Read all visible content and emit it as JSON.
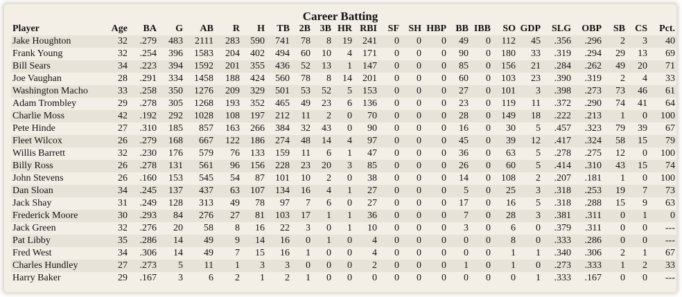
{
  "title": "Career Batting",
  "columns": [
    "Player",
    "Age",
    "BA",
    "G",
    "AB",
    "R",
    "H",
    "TB",
    "2B",
    "3B",
    "HR",
    "RBI",
    "SF",
    "SH",
    "HBP",
    "BB",
    "IBB",
    "SO",
    "GDP",
    "SLG",
    "OBP",
    "SB",
    "CS",
    "Pct."
  ],
  "rows": [
    [
      "Jake Houghton",
      "32",
      ".279",
      "483",
      "2111",
      "283",
      "590",
      "741",
      "78",
      "8",
      "19",
      "241",
      "0",
      "0",
      "0",
      "49",
      "0",
      "112",
      "45",
      ".356",
      ".296",
      "2",
      "3",
      "40"
    ],
    [
      "Frank Young",
      "32",
      ".254",
      "396",
      "1583",
      "204",
      "402",
      "494",
      "60",
      "10",
      "4",
      "171",
      "0",
      "0",
      "0",
      "90",
      "0",
      "180",
      "33",
      ".319",
      ".294",
      "29",
      "13",
      "69"
    ],
    [
      "Bill Sears",
      "34",
      ".223",
      "394",
      "1592",
      "201",
      "355",
      "436",
      "52",
      "13",
      "1",
      "147",
      "0",
      "0",
      "0",
      "85",
      "0",
      "156",
      "21",
      ".284",
      ".262",
      "49",
      "20",
      "71"
    ],
    [
      "Joe Vaughan",
      "28",
      ".291",
      "334",
      "1458",
      "188",
      "424",
      "560",
      "78",
      "8",
      "14",
      "201",
      "0",
      "0",
      "0",
      "60",
      "0",
      "103",
      "23",
      ".390",
      ".319",
      "2",
      "4",
      "33"
    ],
    [
      "Washington Macho",
      "33",
      ".258",
      "350",
      "1276",
      "209",
      "329",
      "501",
      "53",
      "52",
      "5",
      "153",
      "0",
      "0",
      "0",
      "27",
      "0",
      "101",
      "3",
      ".398",
      ".273",
      "73",
      "46",
      "61"
    ],
    [
      "Adam Trombley",
      "29",
      ".278",
      "305",
      "1268",
      "193",
      "352",
      "465",
      "49",
      "23",
      "6",
      "136",
      "0",
      "0",
      "0",
      "23",
      "0",
      "119",
      "11",
      ".372",
      ".290",
      "74",
      "41",
      "64"
    ],
    [
      "Charlie Moss",
      "42",
      ".192",
      "292",
      "1028",
      "108",
      "197",
      "212",
      "11",
      "2",
      "0",
      "70",
      "0",
      "0",
      "0",
      "28",
      "0",
      "149",
      "18",
      ".222",
      ".213",
      "1",
      "0",
      "100"
    ],
    [
      "Pete Hinde",
      "27",
      ".310",
      "185",
      "857",
      "163",
      "266",
      "384",
      "32",
      "43",
      "0",
      "90",
      "0",
      "0",
      "0",
      "16",
      "0",
      "30",
      "5",
      ".457",
      ".323",
      "79",
      "39",
      "67"
    ],
    [
      "Fleet Wilcox",
      "26",
      ".279",
      "168",
      "667",
      "122",
      "186",
      "274",
      "48",
      "14",
      "4",
      "97",
      "0",
      "0",
      "0",
      "45",
      "0",
      "39",
      "12",
      ".417",
      ".324",
      "58",
      "15",
      "79"
    ],
    [
      "Willis Barrett",
      "32",
      ".230",
      "176",
      "579",
      "76",
      "133",
      "159",
      "11",
      "6",
      "1",
      "47",
      "0",
      "0",
      "0",
      "36",
      "0",
      "63",
      "5",
      ".278",
      ".275",
      "12",
      "0",
      "100"
    ],
    [
      "Billy Ross",
      "26",
      ".278",
      "131",
      "561",
      "96",
      "156",
      "228",
      "23",
      "20",
      "3",
      "85",
      "0",
      "0",
      "0",
      "26",
      "0",
      "60",
      "5",
      ".414",
      ".310",
      "43",
      "15",
      "74"
    ],
    [
      "John Stevens",
      "26",
      ".160",
      "153",
      "545",
      "54",
      "87",
      "101",
      "10",
      "2",
      "0",
      "38",
      "0",
      "0",
      "0",
      "14",
      "0",
      "108",
      "2",
      ".207",
      ".181",
      "1",
      "0",
      "100"
    ],
    [
      "Dan Sloan",
      "34",
      ".245",
      "137",
      "437",
      "63",
      "107",
      "134",
      "16",
      "4",
      "1",
      "27",
      "0",
      "0",
      "0",
      "5",
      "0",
      "25",
      "3",
      ".318",
      ".253",
      "19",
      "7",
      "73"
    ],
    [
      "Jack Shay",
      "31",
      ".249",
      "128",
      "313",
      "49",
      "78",
      "97",
      "7",
      "6",
      "0",
      "27",
      "0",
      "0",
      "0",
      "17",
      "0",
      "16",
      "5",
      ".318",
      ".288",
      "15",
      "9",
      "63"
    ],
    [
      "Frederick Moore",
      "30",
      ".293",
      "84",
      "276",
      "27",
      "81",
      "103",
      "17",
      "1",
      "1",
      "36",
      "0",
      "0",
      "0",
      "7",
      "0",
      "28",
      "3",
      ".381",
      ".311",
      "0",
      "1",
      "0"
    ],
    [
      "Jack Green",
      "32",
      ".276",
      "20",
      "58",
      "8",
      "16",
      "22",
      "3",
      "0",
      "1",
      "10",
      "0",
      "0",
      "0",
      "3",
      "0",
      "6",
      "0",
      ".379",
      ".311",
      "0",
      "0",
      "---"
    ],
    [
      "Pat Libby",
      "35",
      ".286",
      "14",
      "49",
      "9",
      "14",
      "16",
      "0",
      "1",
      "0",
      "4",
      "0",
      "0",
      "0",
      "0",
      "0",
      "8",
      "0",
      ".333",
      ".286",
      "0",
      "0",
      "---"
    ],
    [
      "Fred West",
      "34",
      ".306",
      "14",
      "49",
      "7",
      "15",
      "16",
      "1",
      "0",
      "0",
      "4",
      "0",
      "0",
      "0",
      "0",
      "0",
      "1",
      "1",
      ".340",
      ".306",
      "2",
      "1",
      "67"
    ],
    [
      "Charles Hundley",
      "27",
      ".273",
      "5",
      "11",
      "1",
      "3",
      "3",
      "0",
      "0",
      "0",
      "2",
      "0",
      "0",
      "0",
      "1",
      "0",
      "1",
      "0",
      ".273",
      ".333",
      "1",
      "2",
      "33"
    ],
    [
      "Harry Baker",
      "29",
      ".167",
      "3",
      "6",
      "2",
      "1",
      "2",
      "1",
      "0",
      "0",
      "0",
      "0",
      "0",
      "0",
      "0",
      "0",
      "0",
      "1",
      ".333",
      ".167",
      "0",
      "0",
      "---"
    ]
  ]
}
